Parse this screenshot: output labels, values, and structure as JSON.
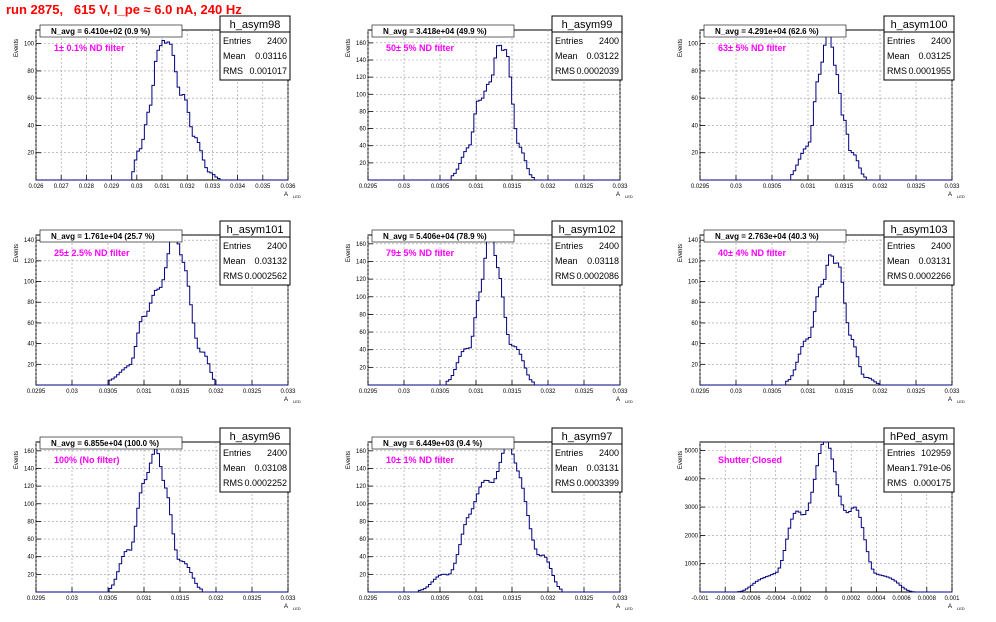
{
  "title": "run 2875,   615 V, I_pe ≈ 6.0 nA, 240 Hz",
  "chart_data": [
    {
      "type": "histogram",
      "name": "h_asym98",
      "navg": "N_avg = 6.410e+02 (0.9 %)",
      "filter": "1± 0.1% ND filter",
      "stats": {
        "entries": "2400",
        "mean": "0.03116",
        "rms": "0.001017"
      },
      "xlim": [
        0.026,
        0.036
      ],
      "xticks": [
        "0.026",
        "0.027",
        "0.028",
        "0.029",
        "0.03",
        "0.031",
        "0.032",
        "0.033",
        "0.034",
        "0.035",
        "0.036"
      ],
      "ylim": [
        0,
        110
      ],
      "yticks": [
        "20",
        "40",
        "60",
        "80",
        "100"
      ],
      "bins": 100,
      "centers": [
        0.02975,
        0.0301,
        0.0305,
        0.03085,
        0.0311,
        0.03135,
        0.0318,
        0.0323,
        0.0329,
        0.0333
      ],
      "counts": [
        2,
        25,
        52,
        85,
        95,
        105,
        68,
        28,
        6,
        1
      ],
      "xlabel": "A_{LED}",
      "ylabel": "Events"
    },
    {
      "type": "histogram",
      "name": "h_asym99",
      "navg": "N_avg = 3.418e+04 (49.9 %)",
      "filter": "50± 5% ND filter",
      "stats": {
        "entries": "2400",
        "mean": "0.03122",
        "rms": "0.0002039"
      },
      "xlim": [
        0.0295,
        0.033
      ],
      "xticks": [
        "0.0295",
        "0.03",
        "0.0305",
        "0.031",
        "0.0315",
        "0.032",
        "0.0325",
        "0.033"
      ],
      "ylim": [
        0,
        175
      ],
      "yticks": [
        "20",
        "40",
        "60",
        "80",
        "100",
        "120",
        "140",
        "160"
      ],
      "bins": 100,
      "centers": [
        0.03065,
        0.0309,
        0.03105,
        0.0312,
        0.0313,
        0.0314,
        0.0316,
        0.0318
      ],
      "counts": [
        5,
        35,
        90,
        130,
        165,
        140,
        40,
        3
      ],
      "xlabel": "A_{LED}",
      "ylabel": "Events"
    },
    {
      "type": "histogram",
      "name": "h_asym100",
      "navg": "N_avg = 4.291e+04 (62.6 %)",
      "filter": "63± 5% ND filter",
      "stats": {
        "entries": "2400",
        "mean": "0.03125",
        "rms": "0.0001955"
      },
      "xlim": [
        0.0295,
        0.033
      ],
      "xticks": [
        "0.0295",
        "0.03",
        "0.0305",
        "0.031",
        "0.0315",
        "0.032",
        "0.0325",
        "0.033"
      ],
      "ylim": [
        0,
        110
      ],
      "yticks": [
        "20",
        "40",
        "60",
        "80",
        "100"
      ],
      "bins": 100,
      "centers": [
        0.03075,
        0.031,
        0.03115,
        0.0313,
        0.0314,
        0.0315,
        0.0316,
        0.0318
      ],
      "counts": [
        3,
        28,
        70,
        102,
        85,
        50,
        20,
        2
      ],
      "xlabel": "A_{LED}",
      "ylabel": "Events"
    },
    {
      "type": "histogram",
      "name": "h_asym101",
      "navg": "N_avg = 1.761e+04 (25.7 %)",
      "filter": "25± 2.5% ND filter",
      "stats": {
        "entries": "2400",
        "mean": "0.03132",
        "rms": "0.0002562"
      },
      "xlim": [
        0.0295,
        0.033
      ],
      "xticks": [
        "0.0295",
        "0.03",
        "0.0305",
        "0.031",
        "0.0315",
        "0.032",
        "0.0325",
        "0.033"
      ],
      "ylim": [
        0,
        145
      ],
      "yticks": [
        "20",
        "40",
        "60",
        "80",
        "100",
        "120",
        "140"
      ],
      "bins": 100,
      "centers": [
        0.0305,
        0.0308,
        0.031,
        0.0312,
        0.0314,
        0.03155,
        0.0318,
        0.032
      ],
      "counts": [
        4,
        20,
        60,
        105,
        135,
        110,
        35,
        3
      ],
      "xlabel": "A_{LED}",
      "ylabel": "Events"
    },
    {
      "type": "histogram",
      "name": "h_asym102",
      "navg": "N_avg = 5.406e+04 (78.9 %)",
      "filter": "79± 5% ND filter",
      "stats": {
        "entries": "2400",
        "mean": "0.03118",
        "rms": "0.0002086"
      },
      "xlim": [
        0.0295,
        0.033
      ],
      "xticks": [
        "0.0295",
        "0.03",
        "0.0305",
        "0.031",
        "0.0315",
        "0.032",
        "0.0325",
        "0.033"
      ],
      "ylim": [
        0,
        170
      ],
      "yticks": [
        "20",
        "40",
        "60",
        "80",
        "100",
        "120",
        "140",
        "160"
      ],
      "bins": 100,
      "centers": [
        0.0306,
        0.0309,
        0.03105,
        0.0312,
        0.0313,
        0.0315,
        0.0318
      ],
      "counts": [
        4,
        45,
        110,
        160,
        125,
        50,
        3
      ],
      "xlabel": "A_{LED}",
      "ylabel": "Events"
    },
    {
      "type": "histogram",
      "name": "h_asym103",
      "navg": "N_avg = 2.763e+04 (40.3 %)",
      "filter": "40± 4% ND filter",
      "stats": {
        "entries": "2400",
        "mean": "0.03131",
        "rms": "0.0002266"
      },
      "xlim": [
        0.0295,
        0.033
      ],
      "xticks": [
        "0.0295",
        "0.03",
        "0.0305",
        "0.031",
        "0.0315",
        "0.032",
        "0.0325",
        "0.033"
      ],
      "ylim": [
        0,
        145
      ],
      "yticks": [
        "20",
        "40",
        "60",
        "80",
        "100",
        "120",
        "140"
      ],
      "bins": 100,
      "centers": [
        0.0307,
        0.031,
        0.0312,
        0.0313,
        0.0314,
        0.0316,
        0.0318,
        0.032
      ],
      "counts": [
        4,
        40,
        110,
        135,
        110,
        45,
        8,
        1
      ],
      "xlabel": "A_{LED}",
      "ylabel": "Events"
    },
    {
      "type": "histogram",
      "name": "h_asym96",
      "navg": "N_avg = 6.855e+04 (100.0 %)",
      "filter": "100% (No filter)",
      "stats": {
        "entries": "2400",
        "mean": "0.03108",
        "rms": "0.0002252"
      },
      "xlim": [
        0.0295,
        0.033
      ],
      "xticks": [
        "0.0295",
        "0.03",
        "0.0305",
        "0.031",
        "0.0315",
        "0.032",
        "0.0325",
        "0.033"
      ],
      "ylim": [
        0,
        170
      ],
      "yticks": [
        "20",
        "40",
        "60",
        "80",
        "100",
        "120",
        "140",
        "160"
      ],
      "bins": 100,
      "centers": [
        0.0305,
        0.0308,
        0.031,
        0.03115,
        0.0313,
        0.0315,
        0.0318
      ],
      "counts": [
        3,
        45,
        140,
        150,
        110,
        40,
        3
      ],
      "xlabel": "A_{LED}",
      "ylabel": "Events"
    },
    {
      "type": "histogram",
      "name": "h_asym97",
      "navg": "N_avg = 6.449e+03 (9.4 %)",
      "filter": "10± 1% ND filter",
      "stats": {
        "entries": "2400",
        "mean": "0.03131",
        "rms": "0.0003399"
      },
      "xlim": [
        0.0295,
        0.033
      ],
      "xticks": [
        "0.0295",
        "0.03",
        "0.0305",
        "0.031",
        "0.0315",
        "0.032",
        "0.0325",
        "0.033"
      ],
      "ylim": [
        0,
        170
      ],
      "yticks": [
        "20",
        "40",
        "60",
        "80",
        "100",
        "120",
        "140",
        "160"
      ],
      "bins": 100,
      "centers": [
        0.0302,
        0.0306,
        0.0309,
        0.0312,
        0.0314,
        0.0316,
        0.0319,
        0.0322
      ],
      "counts": [
        2,
        20,
        80,
        140,
        155,
        130,
        40,
        3
      ],
      "xlabel": "A_{LED}",
      "ylabel": "Events"
    },
    {
      "type": "histogram",
      "name": "hPed_asym",
      "navg": "",
      "filter": "Shutter Closed",
      "stats": {
        "entries": "102959",
        "mean": "-1.791e-06",
        "rms": "0.000175"
      },
      "xlim": [
        -0.001,
        0.001
      ],
      "xticks": [
        "-0.001",
        "-0.0008",
        "-0.0006",
        "-0.0004",
        "-0.0002",
        "0",
        "0.0002",
        "0.0004",
        "0.0006",
        "0.0008",
        "0.001"
      ],
      "ylim": [
        0,
        5300
      ],
      "yticks": [
        "1000",
        "2000",
        "3000",
        "4000",
        "5000"
      ],
      "bins": 100,
      "centers": [
        -0.0007,
        -0.0004,
        -0.0002,
        0,
        0.0002,
        0.0004,
        0.0007
      ],
      "counts": [
        10,
        700,
        3000,
        4800,
        3000,
        700,
        10
      ],
      "xlabel": "A_{LED}",
      "ylabel": "Events"
    }
  ]
}
